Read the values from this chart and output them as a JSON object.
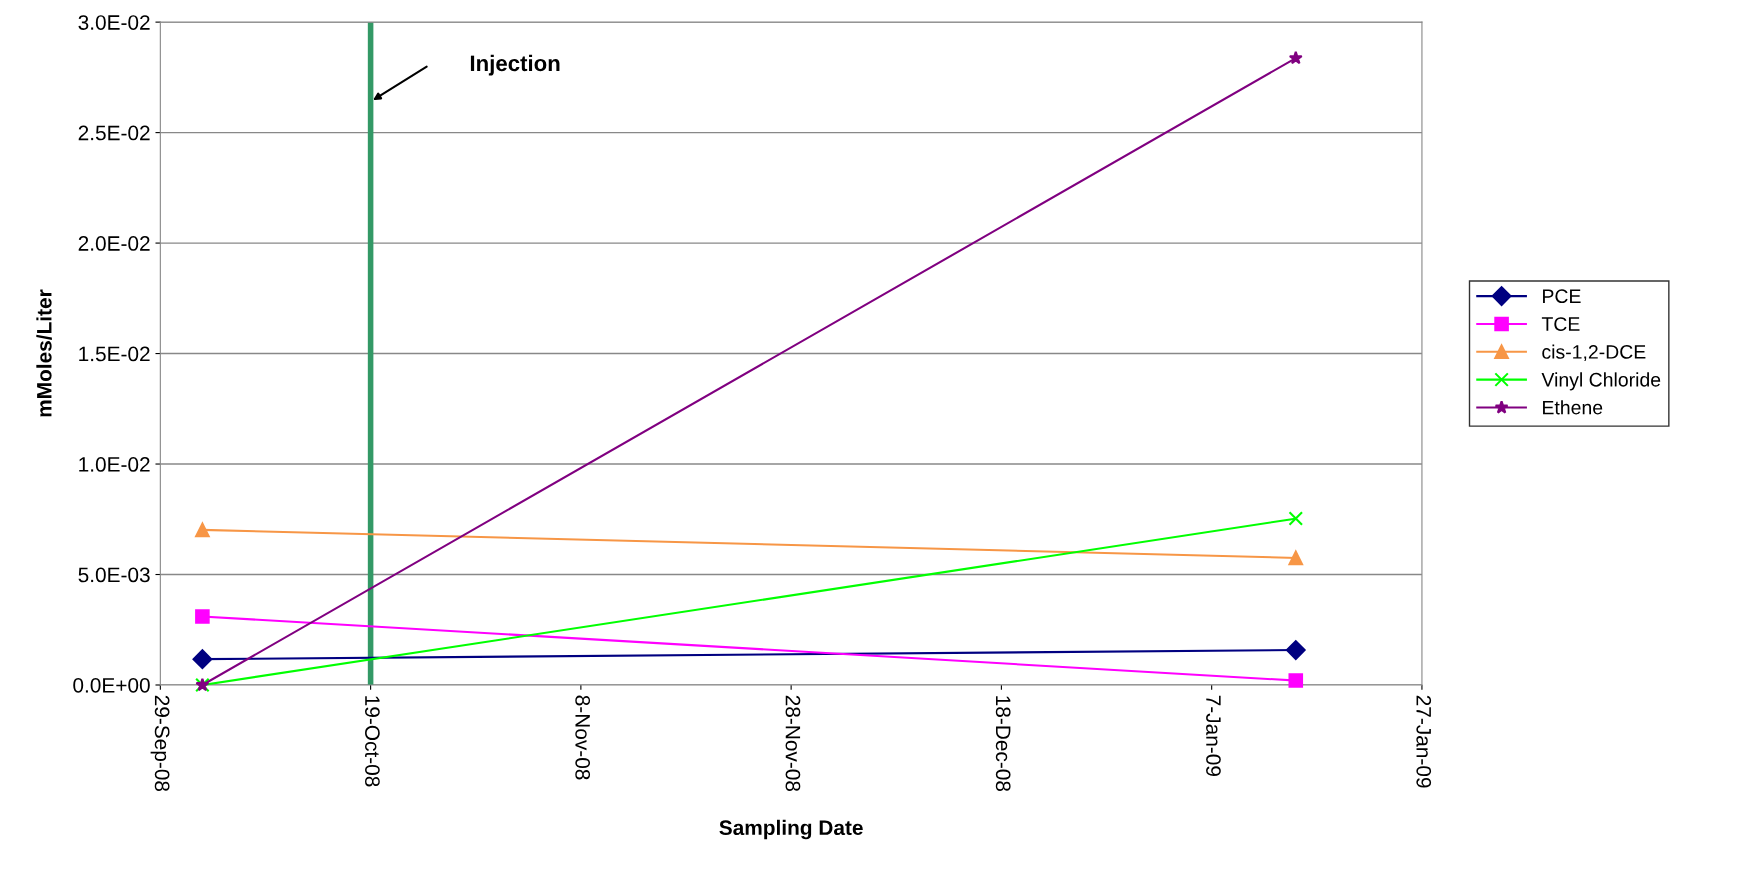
{
  "chart_data": {
    "type": "line",
    "xlabel": "Sampling Date",
    "ylabel": "mMoles/Liter",
    "x": [
      "2008-10-03",
      "2009-01-15"
    ],
    "series": [
      {
        "name": "PCE",
        "color": "#000080",
        "marker": "diamond",
        "values": [
          0.00117,
          0.00158
        ]
      },
      {
        "name": "TCE",
        "color": "#ff00ff",
        "marker": "square",
        "values": [
          0.0031,
          0.0002
        ]
      },
      {
        "name": "cis-1,2-DCE",
        "color": "#f79646",
        "marker": "triangle",
        "values": [
          0.00702,
          0.00575
        ]
      },
      {
        "name": "Vinyl Chloride",
        "color": "#00ff00",
        "marker": "cross",
        "values": [
          0.0,
          0.00753
        ]
      },
      {
        "name": "Ethene",
        "color": "#800080",
        "marker": "star",
        "values": [
          0.0,
          0.02837
        ]
      }
    ],
    "xlim": [
      "2008-09-29",
      "2009-01-27"
    ],
    "xticks": [
      {
        "value": "2008-09-29",
        "label": "29-Sep-08"
      },
      {
        "value": "2008-10-19",
        "label": "19-Oct-08"
      },
      {
        "value": "2008-11-08",
        "label": "8-Nov-08"
      },
      {
        "value": "2008-11-28",
        "label": "28-Nov-08"
      },
      {
        "value": "2008-12-18",
        "label": "18-Dec-08"
      },
      {
        "value": "2009-01-07",
        "label": "7-Jan-09"
      },
      {
        "value": "2009-01-27",
        "label": "27-Jan-09"
      }
    ],
    "ylim": [
      0,
      0.03
    ],
    "yticks": [
      {
        "value": 0,
        "label": "0.0E+00"
      },
      {
        "value": 0.005,
        "label": "5.0E-03"
      },
      {
        "value": 0.01,
        "label": "1.0E-02"
      },
      {
        "value": 0.015,
        "label": "1.5E-02"
      },
      {
        "value": 0.02,
        "label": "2.0E-02"
      },
      {
        "value": 0.025,
        "label": "2.5E-02"
      },
      {
        "value": 0.03,
        "label": "3.0E-02"
      }
    ],
    "ref_lines": [
      {
        "axis": "x",
        "value": "2008-10-19",
        "color": "#339966"
      }
    ],
    "annotations": [
      "Injection"
    ],
    "grid": "y",
    "legend": "right",
    "line_style": "solid"
  }
}
